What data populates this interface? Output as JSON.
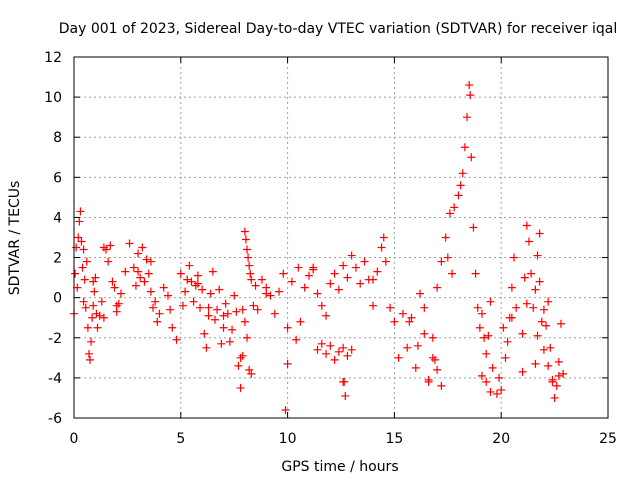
{
  "chart_data": {
    "type": "scatter",
    "title": "Day 001 of 2023, Sidereal Day-to-day VTEC variation (SDTVAR) for receiver iqal",
    "xlabel": "GPS time / hours",
    "ylabel": "SDTVAR / TECUs",
    "xlim": [
      0,
      25
    ],
    "ylim": [
      -6,
      12
    ],
    "xticks": [
      0,
      5,
      10,
      15,
      20,
      25
    ],
    "yticks": [
      -6,
      -4,
      -2,
      0,
      2,
      4,
      6,
      8,
      10,
      12
    ],
    "grid": true,
    "marker": "+",
    "series": [
      {
        "name": "SDTVAR",
        "color": "#ff0000",
        "x": [
          0.0,
          0.05,
          0.1,
          0.15,
          0.2,
          0.25,
          0.3,
          0.35,
          0.4,
          0.45,
          0.5,
          0.55,
          0.6,
          0.65,
          0.7,
          0.75,
          0.8,
          0.85,
          0.9,
          0.95,
          1.0,
          1.05,
          1.1,
          1.2,
          1.3,
          1.4,
          1.5,
          1.6,
          1.7,
          1.8,
          1.9,
          2.0,
          2.1,
          2.2,
          2.4,
          2.6,
          2.8,
          2.9,
          3.0,
          3.1,
          3.2,
          3.3,
          3.4,
          3.5,
          3.6,
          3.7,
          3.8,
          3.9,
          4.0,
          4.2,
          4.4,
          4.6,
          4.8,
          5.0,
          5.1,
          5.2,
          5.3,
          5.4,
          5.5,
          5.6,
          5.7,
          5.8,
          5.9,
          6.0,
          6.1,
          6.2,
          6.3,
          6.4,
          6.5,
          6.6,
          6.7,
          6.8,
          6.9,
          7.0,
          7.1,
          7.2,
          7.3,
          7.4,
          7.5,
          7.6,
          7.7,
          7.8,
          7.9,
          8.0,
          8.05,
          8.1,
          8.15,
          8.2,
          8.25,
          8.3,
          8.4,
          8.5,
          8.6,
          8.8,
          9.0,
          9.2,
          9.4,
          9.6,
          9.8,
          10.0,
          10.2,
          10.4,
          10.6,
          10.8,
          11.0,
          11.2,
          11.4,
          11.6,
          11.8,
          12.0,
          12.2,
          12.4,
          12.6,
          12.8,
          13.0,
          13.2,
          13.4,
          13.6,
          13.8,
          14.0,
          14.2,
          14.4,
          14.5,
          14.6,
          14.8,
          15.0,
          15.2,
          15.4,
          15.6,
          15.8,
          16.0,
          16.2,
          16.4,
          16.6,
          16.8,
          17.0,
          17.2,
          17.4,
          17.6,
          17.8,
          18.0,
          18.1,
          18.2,
          18.3,
          18.4,
          18.5,
          18.55,
          18.6,
          18.7,
          18.8,
          18.9,
          19.0,
          19.1,
          19.2,
          19.3,
          19.4,
          19.5,
          19.6,
          19.8,
          19.9,
          20.0,
          20.1,
          20.2,
          20.3,
          20.4,
          20.5,
          20.6,
          20.7,
          21.0,
          21.1,
          21.2,
          21.3,
          21.4,
          21.5,
          21.6,
          21.7,
          21.8,
          21.9,
          22.0,
          22.1,
          22.2,
          22.3,
          22.4,
          22.5,
          22.6,
          22.7,
          22.8,
          11.2,
          11.4,
          11.6,
          11.8,
          12.0,
          12.2,
          12.4,
          12.6,
          12.8,
          13.0,
          7.8,
          7.9,
          8.0,
          8.1,
          8.2,
          8.3,
          12.6,
          12.65,
          12.7,
          9.9,
          10.0,
          16.6,
          16.8,
          17.0,
          17.2,
          19.1,
          19.3,
          21.0,
          21.6,
          21.7,
          22.0,
          22.2,
          22.4,
          22.7,
          0.45,
          0.9,
          1.4,
          2.0,
          3.0,
          3.6,
          4.5,
          5.8,
          6.3,
          7.0,
          9.0,
          10.5,
          14.0,
          15.7,
          16.1,
          16.4,
          16.9,
          17.5,
          17.7,
          19.5,
          20.5,
          21.2,
          21.8,
          22.9
        ],
        "y": [
          -0.8,
          1.2,
          2.5,
          0.5,
          3.0,
          3.8,
          4.3,
          2.8,
          1.5,
          -0.2,
          0.9,
          -0.5,
          1.8,
          -1.5,
          -2.8,
          -3.1,
          -2.2,
          -1.0,
          -0.4,
          0.3,
          1.0,
          -0.8,
          -1.5,
          -0.9,
          -0.2,
          -1.0,
          2.4,
          1.8,
          2.6,
          0.8,
          0.5,
          -0.7,
          -0.3,
          0.2,
          1.3,
          2.7,
          1.5,
          0.6,
          2.2,
          1.0,
          2.5,
          0.8,
          1.9,
          1.2,
          0.3,
          -0.5,
          -0.2,
          -1.2,
          -0.8,
          0.5,
          0.1,
          -1.5,
          -2.1,
          1.2,
          -0.4,
          0.3,
          0.9,
          1.6,
          0.8,
          -0.2,
          0.6,
          1.1,
          -0.5,
          0.4,
          -1.8,
          -2.5,
          -0.9,
          0.2,
          1.3,
          -1.1,
          -0.6,
          0.4,
          -2.3,
          -1.5,
          -0.3,
          -0.8,
          -2.2,
          -1.6,
          0.1,
          -0.7,
          -3.4,
          -4.5,
          -2.9,
          3.3,
          2.9,
          2.4,
          2.0,
          1.6,
          1.2,
          0.9,
          -0.4,
          0.6,
          -0.6,
          0.9,
          0.5,
          0.1,
          -0.8,
          0.3,
          1.2,
          -1.5,
          0.8,
          -2.1,
          -1.2,
          0.5,
          1.1,
          1.4,
          0.2,
          -0.4,
          -0.9,
          0.7,
          1.2,
          0.4,
          1.6,
          1.0,
          2.1,
          1.5,
          0.7,
          1.8,
          0.9,
          -0.4,
          1.3,
          2.5,
          3.0,
          1.8,
          -0.5,
          -1.2,
          -3.0,
          -0.8,
          -2.5,
          -1.0,
          -3.5,
          0.2,
          -1.8,
          -4.2,
          -2.0,
          0.5,
          1.8,
          3.0,
          4.2,
          4.5,
          5.1,
          5.6,
          6.2,
          7.5,
          9.0,
          10.6,
          10.1,
          7.0,
          3.5,
          1.2,
          -0.5,
          -1.5,
          -0.8,
          -2.0,
          -2.8,
          -1.9,
          -0.2,
          -3.5,
          -4.8,
          -4.0,
          -4.6,
          -1.5,
          -3.0,
          -2.2,
          -1.0,
          0.5,
          2.0,
          -0.5,
          -1.8,
          1.0,
          3.6,
          2.8,
          1.2,
          -0.5,
          0.4,
          2.1,
          0.8,
          -1.2,
          -0.6,
          -1.4,
          -0.2,
          -2.5,
          -4.1,
          -5.0,
          -4.4,
          -3.2,
          -1.3,
          1.5,
          -2.6,
          -2.3,
          -2.8,
          -2.4,
          -3.1,
          -2.7,
          -2.5,
          -2.9,
          -2.6,
          -3.0,
          -0.6,
          -1.2,
          -2.0,
          -3.6,
          -3.8,
          -4.2,
          -4.2,
          -4.9,
          -5.6,
          -3.3,
          -4.1,
          -3.0,
          -3.6,
          -4.4,
          -3.9,
          -4.2,
          -3.7,
          -3.3,
          -1.9,
          -2.6,
          -3.4,
          -4.2,
          -3.9,
          2.4,
          0.8,
          2.5,
          -0.4,
          1.3,
          1.8,
          -0.6,
          0.7,
          -0.5,
          -0.9,
          0.2,
          1.5,
          0.9,
          -1.2,
          -2.4,
          -0.5,
          -3.1,
          2.0,
          1.2,
          -4.7,
          -1.0,
          -0.3,
          3.2,
          -3.8
        ]
      }
    ]
  }
}
